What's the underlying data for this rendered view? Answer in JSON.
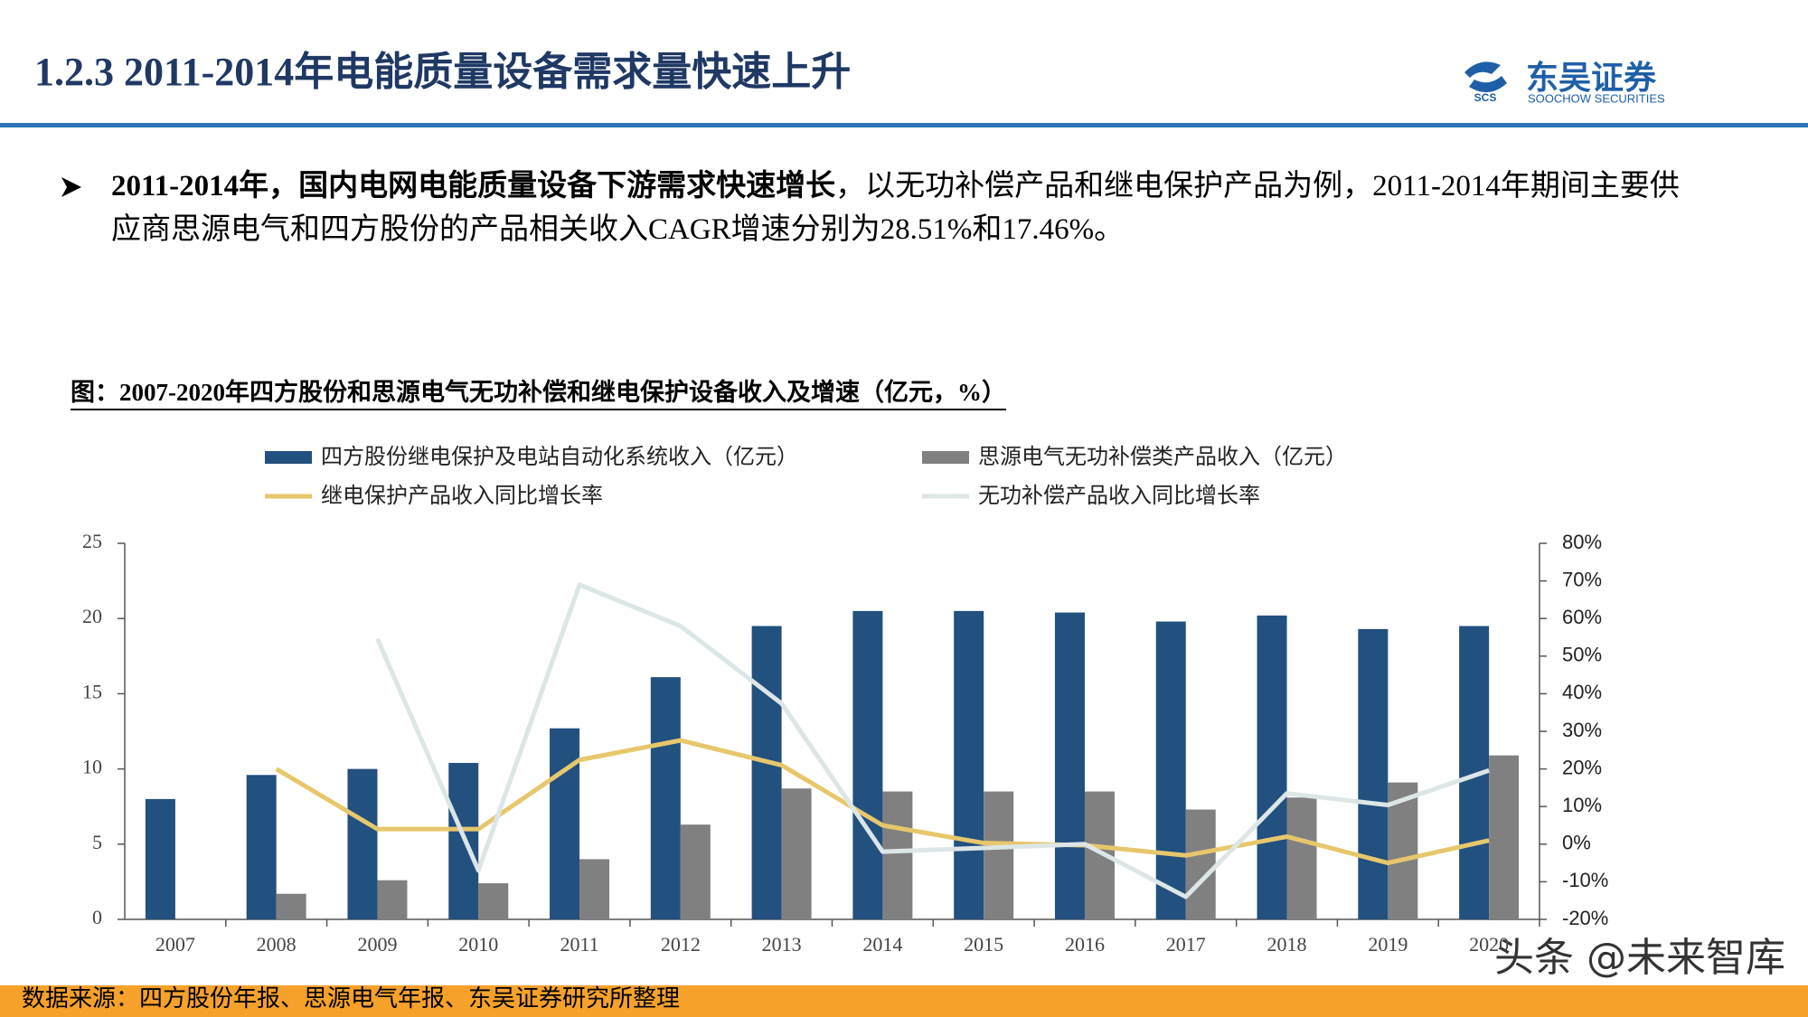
{
  "header": {
    "title": "1.2.3  2011-2014年电能质量设备需求量快速上升",
    "logo_mark": "SCS",
    "logo_name": "东吴证券",
    "logo_subtitle": "SOOCHOW SECURITIES"
  },
  "bullet": {
    "bold": "2011-2014年，国内电网电能质量设备下游需求快速增长",
    "text": "，以无功补偿产品和继电保护产品为例，2011-2014年期间主要供应商思源电气和四方股份的产品相关收入CAGR增速分别为28.51%和17.46%。"
  },
  "chart_data": {
    "type": "bar",
    "title": "图：2007-2020年四方股份和思源电气无功补偿和继电保护设备收入及增速（亿元，%）",
    "categories": [
      "2007",
      "2008",
      "2009",
      "2010",
      "2011",
      "2012",
      "2013",
      "2014",
      "2015",
      "2016",
      "2017",
      "2018",
      "2019",
      "2020"
    ],
    "series": [
      {
        "name": "四方股份继电保护及电站自动化系统收入（亿元）",
        "type": "bar",
        "color": "#22507f",
        "values": [
          8.0,
          9.6,
          10.0,
          10.4,
          12.7,
          16.1,
          19.5,
          20.5,
          20.5,
          20.4,
          19.8,
          20.2,
          19.3,
          19.5
        ]
      },
      {
        "name": "思源电气无功补偿类产品收入（亿元）",
        "type": "bar",
        "color": "#808080",
        "values": [
          null,
          1.7,
          2.6,
          2.4,
          4.0,
          6.3,
          8.7,
          8.5,
          8.5,
          8.5,
          7.3,
          8.1,
          9.1,
          10.9
        ]
      },
      {
        "name": "继电保护产品收入同比增长率",
        "type": "line",
        "axis": "y2",
        "color": "#e7c76c",
        "values": [
          null,
          20,
          4,
          4,
          22.4,
          27.6,
          21,
          5,
          0.3,
          -0.3,
          -3,
          2,
          -5,
          1
        ]
      },
      {
        "name": "无功补偿产品收入同比增长率",
        "type": "line",
        "axis": "y2",
        "color": "#dce6e6",
        "values": [
          null,
          null,
          54.6,
          -7,
          69,
          58,
          37.4,
          -2,
          -1,
          0,
          -14,
          13.5,
          10.4,
          19.6
        ]
      }
    ],
    "ylim": [
      0,
      25
    ],
    "yticks": [
      0,
      5,
      10,
      15,
      20,
      25
    ],
    "y2lim": [
      -20,
      80
    ],
    "y2ticks": [
      {
        "value": -20,
        "label": "-20%"
      },
      {
        "value": -10,
        "label": "-10%"
      },
      {
        "value": 0,
        "label": "0%"
      },
      {
        "value": 10,
        "label": "10%"
      },
      {
        "value": 20,
        "label": "20%"
      },
      {
        "value": 30,
        "label": "30%"
      },
      {
        "value": 40,
        "label": "40%"
      },
      {
        "value": 50,
        "label": "50%"
      },
      {
        "value": 60,
        "label": "60%"
      },
      {
        "value": 70,
        "label": "70%"
      },
      {
        "value": 80,
        "label": "80%"
      }
    ],
    "grid": false
  },
  "source": "数据来源：四方股份年报、思源电气年报、东吴证券研究所整理",
  "watermark": "头条 @未来智库"
}
